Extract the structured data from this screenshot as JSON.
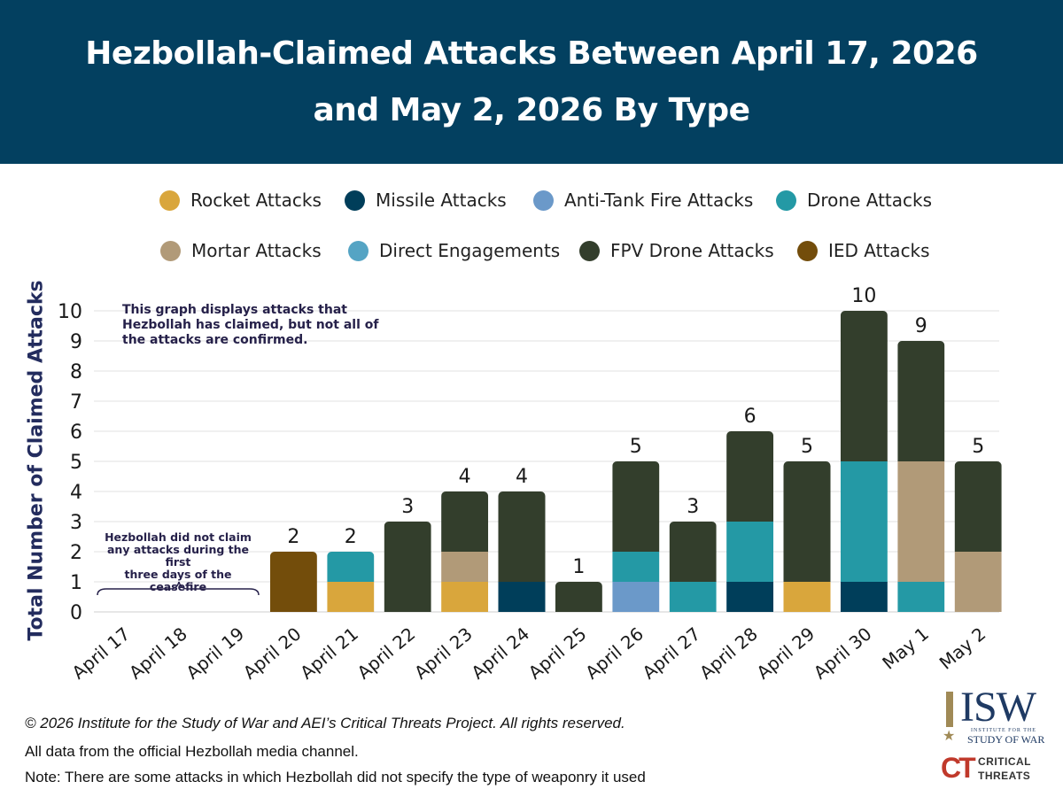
{
  "header": {
    "title_line1": "Hezbollah-Claimed Attacks Between April 17, 2026",
    "title_line2": "and May 2, 2026 By Type"
  },
  "colors": {
    "header_bg": "#034060",
    "rocket": "#d9a63c",
    "missile": "#003e5a",
    "anti_tank": "#6b99c9",
    "drone": "#2499a5",
    "mortar": "#b19a78",
    "direct": "#55a4c4",
    "fpv": "#333e2c",
    "ied": "#734d0b"
  },
  "legend": [
    {
      "label": "Rocket Attacks",
      "color": "#d9a63c"
    },
    {
      "label": "Missile Attacks",
      "color": "#003e5a"
    },
    {
      "label": "Anti-Tank Fire Attacks",
      "color": "#6b99c9"
    },
    {
      "label": "Drone Attacks",
      "color": "#2499a5"
    },
    {
      "label": "Mortar Attacks",
      "color": "#b19a78"
    },
    {
      "label": "Direct Engagements",
      "color": "#55a4c4"
    },
    {
      "label": "FPV Drone Attacks",
      "color": "#333e2c"
    },
    {
      "label": "IED Attacks",
      "color": "#734d0b"
    }
  ],
  "chart_data": {
    "type": "bar",
    "stacked": true,
    "title": "Hezbollah-Claimed Attacks Between April 17, 2026 and May 2, 2026 By Type",
    "xlabel": "",
    "ylabel": "Total Number of Claimed Attacks",
    "ylim": [
      0,
      10
    ],
    "yticks": [
      0,
      1,
      2,
      3,
      4,
      5,
      6,
      7,
      8,
      9,
      10
    ],
    "grid": true,
    "legend_position": "top",
    "categories": [
      "April 17",
      "April 18",
      "April 19",
      "April 20",
      "April 21",
      "April 22",
      "April 23",
      "April 24",
      "April 25",
      "April 26",
      "April 27",
      "April 28",
      "April 29",
      "April 30",
      "May 1",
      "May 2"
    ],
    "series": [
      {
        "name": "Rocket Attacks",
        "color": "#d9a63c",
        "values": [
          0,
          0,
          0,
          0,
          1,
          0,
          1,
          0,
          0,
          0,
          0,
          0,
          1,
          0,
          0,
          0
        ]
      },
      {
        "name": "Missile Attacks",
        "color": "#003e5a",
        "values": [
          0,
          0,
          0,
          0,
          0,
          0,
          0,
          1,
          0,
          0,
          0,
          1,
          0,
          1,
          0,
          0
        ]
      },
      {
        "name": "Anti-Tank Fire Attacks",
        "color": "#6b99c9",
        "values": [
          0,
          0,
          0,
          0,
          0,
          0,
          0,
          0,
          0,
          1,
          0,
          0,
          0,
          0,
          0,
          0
        ]
      },
      {
        "name": "Drone Attacks",
        "color": "#2499a5",
        "values": [
          0,
          0,
          0,
          0,
          1,
          0,
          0,
          0,
          0,
          1,
          1,
          2,
          0,
          4,
          1,
          0
        ]
      },
      {
        "name": "Mortar Attacks",
        "color": "#b19a78",
        "values": [
          0,
          0,
          0,
          0,
          0,
          0,
          1,
          0,
          0,
          0,
          0,
          0,
          0,
          0,
          4,
          2
        ]
      },
      {
        "name": "Direct Engagements",
        "color": "#55a4c4",
        "values": [
          0,
          0,
          0,
          0,
          0,
          0,
          0,
          0,
          0,
          0,
          0,
          0,
          0,
          0,
          0,
          0
        ]
      },
      {
        "name": "FPV Drone Attacks",
        "color": "#333e2c",
        "values": [
          0,
          0,
          0,
          0,
          0,
          3,
          2,
          3,
          1,
          3,
          2,
          3,
          4,
          5,
          4,
          3
        ]
      },
      {
        "name": "IED Attacks",
        "color": "#734d0b",
        "values": [
          0,
          0,
          0,
          2,
          0,
          0,
          0,
          0,
          0,
          0,
          0,
          0,
          0,
          0,
          0,
          0
        ]
      }
    ],
    "totals": [
      null,
      null,
      null,
      2,
      2,
      3,
      4,
      4,
      1,
      5,
      3,
      6,
      5,
      10,
      9,
      5
    ],
    "annotations": [
      "This graph displays attacks that Hezbollah has claimed, but not all of the attacks are confirmed.",
      "Hezbollah did not claim any attacks during the first three days of the ceasefire"
    ]
  },
  "notes": {
    "disclaimer_lines": [
      "This graph displays attacks that",
      "Hezbollah has claimed, but not all of",
      "the attacks are confirmed."
    ],
    "no_claim_lines": [
      "Hezbollah did not claim",
      "any attacks during the first",
      "three days of the ceasefire"
    ]
  },
  "footer": {
    "copyright": "© 2026 Institute for the Study of War and AEI’s Critical Threats Project. All rights reserved.",
    "source": "All data from the official Hezbollah media channel.",
    "note": "Note: There are some attacks in which Hezbollah did not specify the type of weaponry it used"
  },
  "logos": {
    "isw_letters": "ISW",
    "isw_sub1": "INSTITUTE FOR THE",
    "isw_sub2": "STUDY OF WAR",
    "ct_letters": "CT",
    "ct_word1": "CRITICAL",
    "ct_word2": "THREATS"
  }
}
